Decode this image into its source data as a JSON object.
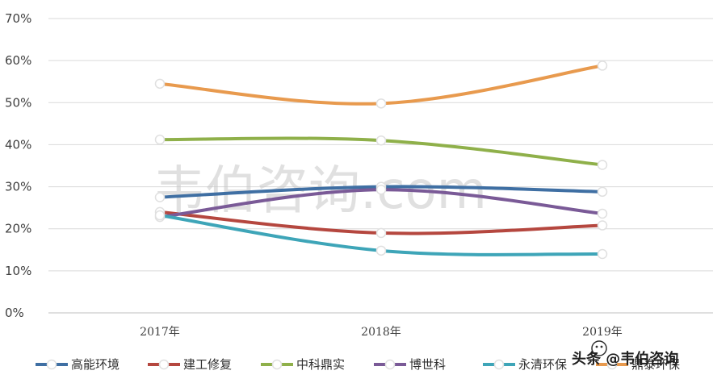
{
  "chart_data": {
    "type": "line",
    "title": "",
    "xlabel": "",
    "ylabel": "",
    "categories": [
      "2017年",
      "2018年",
      "2019年"
    ],
    "ylim": [
      0,
      70
    ],
    "yticks": [
      "0%",
      "10%",
      "20%",
      "30%",
      "40%",
      "50%",
      "60%",
      "70%"
    ],
    "grid": true,
    "legend_position": "bottom",
    "series": [
      {
        "name": "高能环境",
        "values": [
          27.5,
          30.0,
          28.8
        ],
        "color": "#3f6fa3"
      },
      {
        "name": "建工修复",
        "values": [
          24.0,
          19.0,
          20.8
        ],
        "color": "#b5473f"
      },
      {
        "name": "中科鼎实",
        "values": [
          41.2,
          41.0,
          35.2
        ],
        "color": "#8fb04a"
      },
      {
        "name": "博世科",
        "values": [
          22.8,
          29.3,
          23.6
        ],
        "color": "#7a5a97"
      },
      {
        "name": "永清环保",
        "values": [
          23.2,
          14.8,
          14.0
        ],
        "color": "#3ea5b8"
      },
      {
        "name": "鼎泰环保",
        "values": [
          54.5,
          49.8,
          58.8
        ],
        "color": "#e89a4e"
      }
    ]
  },
  "watermark": "韦伯咨询.com",
  "brand": {
    "text": "头条 @韦伯咨询",
    "icon": "wechat-bubble-icon"
  }
}
